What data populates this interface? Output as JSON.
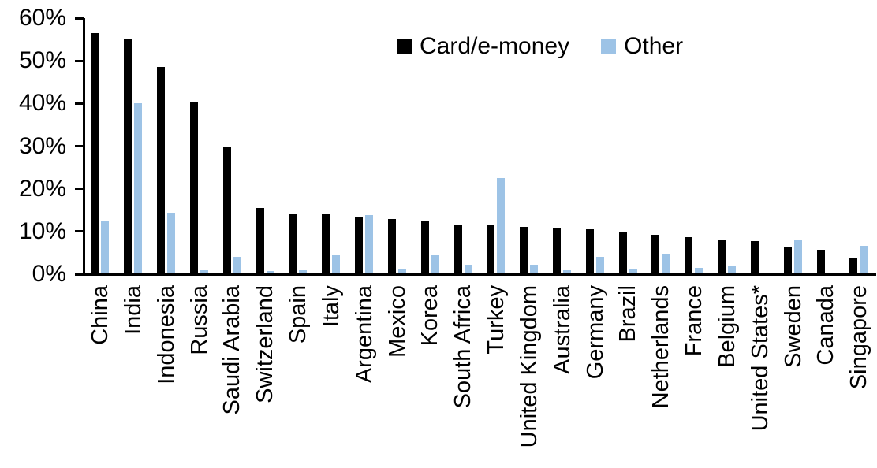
{
  "legend": {
    "card_label": "Card/e-money",
    "other_label": "Other"
  },
  "colors": {
    "card": "#000000",
    "other": "#9DC3E6",
    "axis": "#000000",
    "background": "#FFFFFF"
  },
  "chart_data": {
    "type": "bar",
    "title": "",
    "xlabel": "",
    "ylabel": "",
    "ylim": [
      0,
      60
    ],
    "yticks": [
      0,
      10,
      20,
      30,
      40,
      50,
      60
    ],
    "ytick_labels": [
      "0%",
      "10%",
      "20%",
      "30%",
      "40%",
      "50%",
      "60%"
    ],
    "grid": false,
    "legend_position": "top-center",
    "categories": [
      "China",
      "India",
      "Indonesia",
      "Russia",
      "Saudi Arabia",
      "Switzerland",
      "Spain",
      "Italy",
      "Argentina",
      "Mexico",
      "Korea",
      "South Africa",
      "Turkey",
      "United Kingdom",
      "Australia",
      "Germany",
      "Brazil",
      "Netherlands",
      "France",
      "Belgium",
      "United States*",
      "Sweden",
      "Canada",
      "Singapore"
    ],
    "series": [
      {
        "name": "Card/e-money",
        "color": "#000000",
        "values": [
          56.5,
          55,
          48.5,
          40.5,
          30,
          15.5,
          14.2,
          14,
          13.4,
          12.9,
          12.3,
          11.7,
          11.5,
          11,
          10.8,
          10.5,
          10,
          9.2,
          8.6,
          8.2,
          7.8,
          6.4,
          5.8,
          3.8
        ]
      },
      {
        "name": "Other",
        "color": "#9DC3E6",
        "values": [
          12.5,
          40,
          14.5,
          1,
          4,
          0.8,
          1,
          4.5,
          13.8,
          1.3,
          4.5,
          2.3,
          22.5,
          2.3,
          1,
          4,
          1.2,
          4.8,
          1.5,
          2,
          0.4,
          8,
          0,
          6.6
        ]
      }
    ]
  }
}
